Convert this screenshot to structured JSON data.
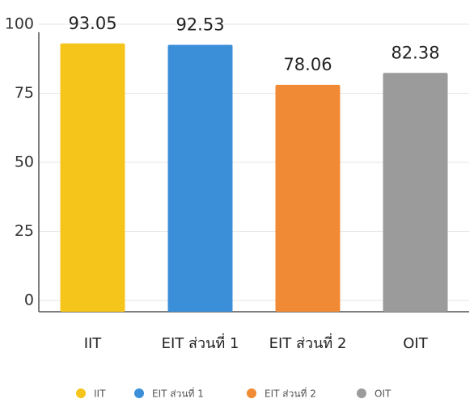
{
  "chart_data": {
    "type": "bar",
    "categories": [
      "IIT",
      "EIT ส่วนที่ 1",
      "EIT ส่วนที่ 2",
      "OIT"
    ],
    "values": [
      93.05,
      92.53,
      78.06,
      82.38
    ],
    "colors": [
      "#f6c51c",
      "#3a8fd8",
      "#f08a34",
      "#9b9b9b"
    ],
    "ylim": [
      0,
      100
    ],
    "yticks": [
      0,
      25,
      50,
      75,
      100
    ],
    "grid": true,
    "legend": "bottom"
  }
}
